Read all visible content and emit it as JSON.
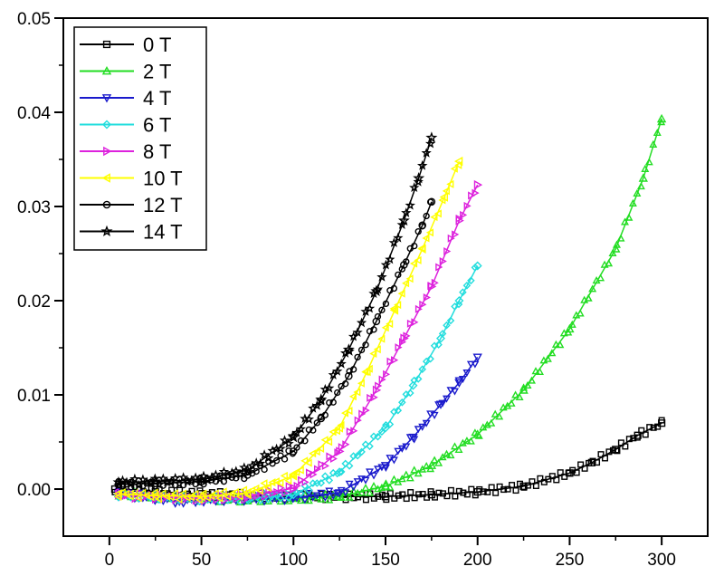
{
  "chart_data": {
    "type": "scatter",
    "title": "",
    "xlabel": "",
    "ylabel": "",
    "xlim": [
      -25,
      325
    ],
    "ylim": [
      -0.005,
      0.05
    ],
    "x_ticks": [
      0,
      50,
      100,
      150,
      200,
      250,
      300
    ],
    "x_tick_labels": [
      "0",
      "50",
      "100",
      "150",
      "200",
      "250",
      "300"
    ],
    "y_ticks": [
      0.0,
      0.01,
      0.02,
      0.03,
      0.04,
      0.05
    ],
    "y_tick_labels": [
      "0.00",
      "0.01",
      "0.02",
      "0.03",
      "0.04",
      "0.05"
    ],
    "grid": false,
    "legend_position": "top-left",
    "series": [
      {
        "name": "0 T",
        "color": "#000000",
        "marker": "square",
        "x": [
          3,
          25,
          50,
          75,
          100,
          125,
          150,
          175,
          200,
          225,
          250,
          262,
          275,
          287,
          300
        ],
        "y": [
          0.0,
          -0.0003,
          -0.0005,
          -0.0007,
          -0.0008,
          -0.0008,
          -0.0008,
          -0.0006,
          -0.0003,
          0.0003,
          0.0017,
          0.0028,
          0.0042,
          0.0057,
          0.007
        ]
      },
      {
        "name": "2 T",
        "color": "#22dd22",
        "marker": "triangle-up",
        "x": [
          5,
          25,
          50,
          75,
          100,
          125,
          150,
          175,
          200,
          225,
          250,
          275,
          290,
          300
        ],
        "y": [
          -0.0005,
          -0.0008,
          -0.001,
          -0.0011,
          -0.001,
          -0.0008,
          0.0003,
          0.0025,
          0.0058,
          0.0105,
          0.017,
          0.0255,
          0.033,
          0.0393
        ]
      },
      {
        "name": "4 T",
        "color": "#1a1acc",
        "marker": "triangle-down",
        "x": [
          5,
          20,
          38,
          55,
          75,
          100,
          125,
          150,
          165,
          180,
          190,
          200
        ],
        "y": [
          -0.0005,
          -0.0008,
          -0.0013,
          -0.0011,
          -0.001,
          -0.0009,
          -0.0004,
          0.0025,
          0.0055,
          0.009,
          0.0113,
          0.014
        ]
      },
      {
        "name": "6 T",
        "color": "#22dddd",
        "marker": "diamond",
        "x": [
          5,
          25,
          50,
          75,
          100,
          125,
          150,
          165,
          180,
          190,
          200
        ],
        "y": [
          -0.0006,
          -0.0008,
          -0.001,
          -0.001,
          -0.0006,
          0.0018,
          0.0065,
          0.011,
          0.016,
          0.02,
          0.0237
        ]
      },
      {
        "name": "8 T",
        "color": "#dd22dd",
        "marker": "triangle-right",
        "x": [
          5,
          25,
          50,
          75,
          100,
          125,
          145,
          160,
          175,
          190,
          200
        ],
        "y": [
          -0.0006,
          -0.0008,
          -0.001,
          -0.0008,
          0.0001,
          0.004,
          0.0105,
          0.016,
          0.0215,
          0.0285,
          0.0323
        ]
      },
      {
        "name": "10 T",
        "color": "#ffff00",
        "marker": "triangle-left",
        "x": [
          5,
          25,
          50,
          75,
          100,
          125,
          140,
          155,
          170,
          182,
          190
        ],
        "y": [
          -0.0005,
          -0.0007,
          -0.0008,
          -0.0004,
          0.0014,
          0.0065,
          0.0125,
          0.019,
          0.0255,
          0.031,
          0.0348
        ]
      },
      {
        "name": "12 T",
        "color": "#000000",
        "marker": "circle",
        "x": [
          5,
          25,
          50,
          75,
          100,
          115,
          130,
          145,
          160,
          170,
          175
        ],
        "y": [
          0.0005,
          0.0006,
          0.0008,
          0.0015,
          0.004,
          0.0075,
          0.012,
          0.0178,
          0.0238,
          0.028,
          0.0305
        ]
      },
      {
        "name": "14 T",
        "color": "#000000",
        "marker": "star",
        "x": [
          5,
          25,
          50,
          75,
          100,
          115,
          130,
          145,
          160,
          168,
          175
        ],
        "y": [
          0.0007,
          0.0008,
          0.001,
          0.002,
          0.0055,
          0.0095,
          0.0148,
          0.021,
          0.0285,
          0.033,
          0.0373
        ]
      }
    ]
  }
}
